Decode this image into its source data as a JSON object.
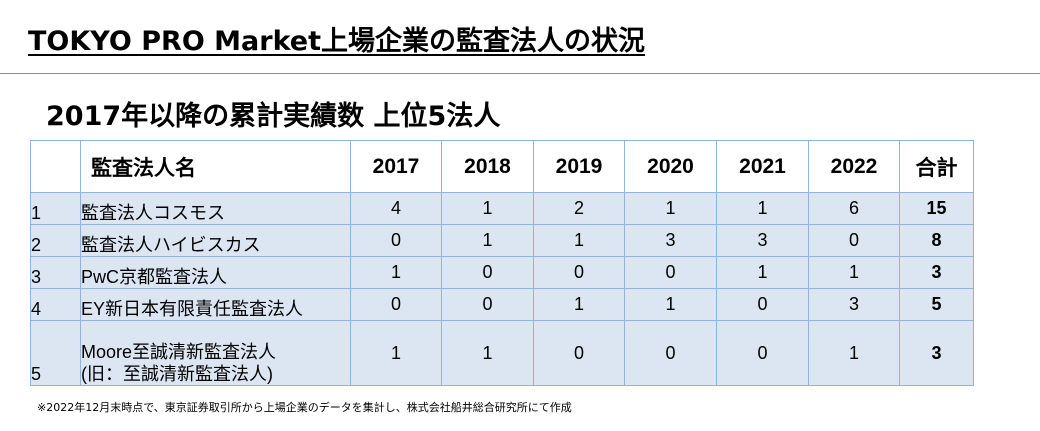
{
  "title": "TOKYO PRO Market上場企業の監査法人の状況",
  "subtitle": "2017年以降の累計実績数 上位5法人",
  "table": {
    "headers": [
      "",
      "監査法人名",
      "2017",
      "2018",
      "2019",
      "2020",
      "2021",
      "2022",
      "合計"
    ],
    "rows": [
      {
        "rank": "1",
        "name": "監査法人コスモス",
        "name2": "",
        "values": [
          "4",
          "1",
          "2",
          "1",
          "1",
          "6"
        ],
        "total": "15"
      },
      {
        "rank": "2",
        "name": "監査法人ハイビスカス",
        "name2": "",
        "values": [
          "0",
          "1",
          "1",
          "3",
          "3",
          "0"
        ],
        "total": "8"
      },
      {
        "rank": "3",
        "name": "PwC京都監査法人",
        "name2": "",
        "values": [
          "1",
          "0",
          "0",
          "0",
          "1",
          "1"
        ],
        "total": "3"
      },
      {
        "rank": "4",
        "name": "EY新日本有限責任監査法人",
        "name2": "",
        "values": [
          "0",
          "0",
          "1",
          "1",
          "0",
          "3"
        ],
        "total": "5"
      },
      {
        "rank": "5",
        "name": "Moore至誠清新監査法人",
        "name2": "(旧：至誠清新監査法人)",
        "values": [
          "1",
          "1",
          "0",
          "0",
          "0",
          "1"
        ],
        "total": "3"
      }
    ]
  },
  "footnote": "※2022年12月末時点で、東京証券取引所から上場企業のデータを集計し、株式会社船井総合研究所にて作成",
  "colors": {
    "row_bg": "#dce6f2",
    "border": "#8eb4e3"
  }
}
